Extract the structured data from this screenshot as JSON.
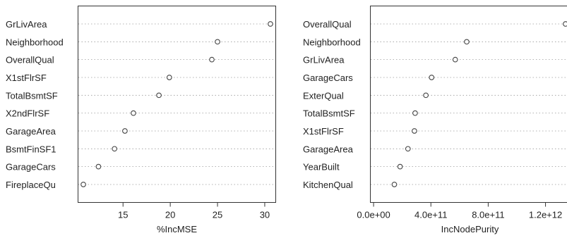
{
  "figure": {
    "colors": {
      "dot_stroke": "#444444",
      "guide": "#9a9a9a",
      "axis": "#333333",
      "text": "#222222"
    }
  },
  "chart_data": [
    {
      "type": "scatter",
      "style": "dotchart",
      "title": "",
      "xlabel": "%IncMSE",
      "ylabel": "",
      "xlim": [
        10.2,
        31.2
      ],
      "xticks": [
        15,
        20,
        25,
        30
      ],
      "tick_labels": [
        "15",
        "20",
        "25",
        "30"
      ],
      "grid": "dotted horizontal guides",
      "categories": [
        "GrLivArea",
        "Neighborhood",
        "OverallQual",
        "X1stFlrSF",
        "TotalBsmtSF",
        "X2ndFlrSF",
        "GarageArea",
        "BsmtFinSF1",
        "GarageCars",
        "FireplaceQu"
      ],
      "values": [
        30.6,
        25.0,
        24.4,
        19.9,
        18.8,
        16.1,
        15.2,
        14.1,
        12.4,
        10.8
      ]
    },
    {
      "type": "scatter",
      "style": "dotchart",
      "title": "",
      "xlabel": "IncNodePurity",
      "ylabel": "",
      "xlim": [
        -25000000000.0,
        1350000000000.0
      ],
      "xticks": [
        0,
        400000000000,
        800000000000,
        1200000000000
      ],
      "tick_labels": [
        "0.0e+00",
        "4.0e+11",
        "8.0e+11",
        "1.2e+12"
      ],
      "grid": "dotted horizontal guides",
      "categories": [
        "OverallQual",
        "Neighborhood",
        "GrLivArea",
        "GarageCars",
        "ExterQual",
        "TotalBsmtSF",
        "X1stFlrSF",
        "GarageArea",
        "YearBuilt",
        "KitchenQual"
      ],
      "values": [
        1340000000000,
        650000000000,
        570000000000,
        405000000000,
        365000000000,
        290000000000,
        285000000000,
        240000000000,
        185000000000,
        145000000000
      ]
    }
  ]
}
